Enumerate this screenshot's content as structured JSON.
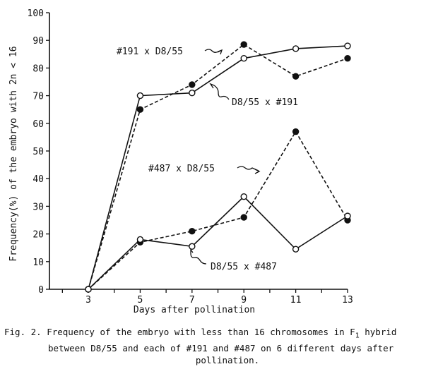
{
  "chart_data": {
    "type": "line",
    "xlabel": "Days after pollination",
    "ylabel": "Frequency(%) of the embryo with 2n < 16",
    "x": [
      3,
      5,
      7,
      9,
      11,
      13
    ],
    "xlim": [
      1.5,
      13
    ],
    "ylim": [
      0,
      100
    ],
    "yticks": [
      0,
      10,
      20,
      30,
      40,
      50,
      60,
      70,
      80,
      90,
      100
    ],
    "xticks": [
      3,
      5,
      7,
      9,
      11,
      13
    ],
    "grid": false,
    "series": [
      {
        "name": "#191 x D8/55",
        "marker": "filled",
        "line": "dashed",
        "values": [
          0,
          65,
          74,
          88.5,
          77,
          83.5
        ]
      },
      {
        "name": "D8/55 x #191",
        "marker": "open",
        "line": "solid",
        "values": [
          0,
          70,
          71,
          83.5,
          87,
          88
        ]
      },
      {
        "name": "#487 x D8/55",
        "marker": "filled",
        "line": "dashed",
        "values": [
          0,
          17,
          21,
          26,
          57,
          25
        ]
      },
      {
        "name": "D8/55 x #487",
        "marker": "open",
        "line": "solid",
        "values": [
          0,
          18,
          15.5,
          33.5,
          14.5,
          26.5
        ]
      }
    ]
  },
  "caption": {
    "line1_prefix": "Fig. 2. Frequency of the embryo with less than 16 chromosomes in F",
    "line1_sub": "1",
    "line1_suffix": " hybrid",
    "line2": "between D8/55 and each of #191 and #487 on 6 different days after",
    "line3": "pollination."
  }
}
